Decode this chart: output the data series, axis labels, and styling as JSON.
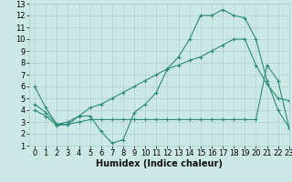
{
  "line1_x": [
    0,
    1,
    2,
    3,
    4,
    5,
    6,
    7,
    8,
    9,
    10,
    11,
    12,
    13,
    14,
    15,
    16,
    17,
    18,
    19,
    20,
    21,
    22,
    23
  ],
  "line1_y": [
    6.0,
    4.2,
    2.8,
    2.8,
    3.5,
    3.5,
    2.2,
    1.2,
    1.5,
    3.8,
    4.5,
    5.5,
    7.5,
    8.5,
    10.0,
    12.0,
    12.0,
    12.5,
    12.0,
    11.8,
    10.0,
    6.5,
    4.0,
    2.5
  ],
  "line2_x": [
    0,
    1,
    2,
    3,
    4,
    5,
    6,
    7,
    8,
    9,
    10,
    11,
    12,
    13,
    14,
    15,
    16,
    17,
    18,
    19,
    20,
    21,
    22,
    23
  ],
  "line2_y": [
    4.5,
    3.8,
    2.8,
    3.0,
    3.5,
    4.2,
    4.5,
    5.0,
    5.5,
    6.0,
    6.5,
    7.0,
    7.5,
    7.8,
    8.2,
    8.5,
    9.0,
    9.5,
    10.0,
    10.0,
    7.8,
    6.2,
    5.0,
    4.8
  ],
  "line3_x": [
    0,
    1,
    2,
    3,
    4,
    5,
    6,
    7,
    8,
    9,
    10,
    11,
    12,
    13,
    14,
    15,
    16,
    17,
    18,
    19,
    20,
    21,
    22,
    23
  ],
  "line3_y": [
    4.0,
    3.5,
    2.7,
    2.8,
    3.0,
    3.2,
    3.2,
    3.2,
    3.2,
    3.2,
    3.2,
    3.2,
    3.2,
    3.2,
    3.2,
    3.2,
    3.2,
    3.2,
    3.2,
    3.2,
    3.2,
    7.8,
    6.5,
    2.5
  ],
  "color": "#2a8a7a",
  "bg_color": "#cce8e4",
  "grid_color": "#aaccca",
  "xlabel": "Humidex (Indice chaleur)",
  "xlim": [
    -0.5,
    23
  ],
  "ylim": [
    1,
    13
  ],
  "yticks": [
    1,
    2,
    3,
    4,
    5,
    6,
    7,
    8,
    9,
    10,
    11,
    12,
    13
  ],
  "xticks": [
    0,
    1,
    2,
    3,
    4,
    5,
    6,
    7,
    8,
    9,
    10,
    11,
    12,
    13,
    14,
    15,
    16,
    17,
    18,
    19,
    20,
    21,
    22,
    23
  ],
  "xlabel_fontsize": 7,
  "tick_fontsize": 6,
  "markersize": 2.0,
  "linewidth": 0.8
}
